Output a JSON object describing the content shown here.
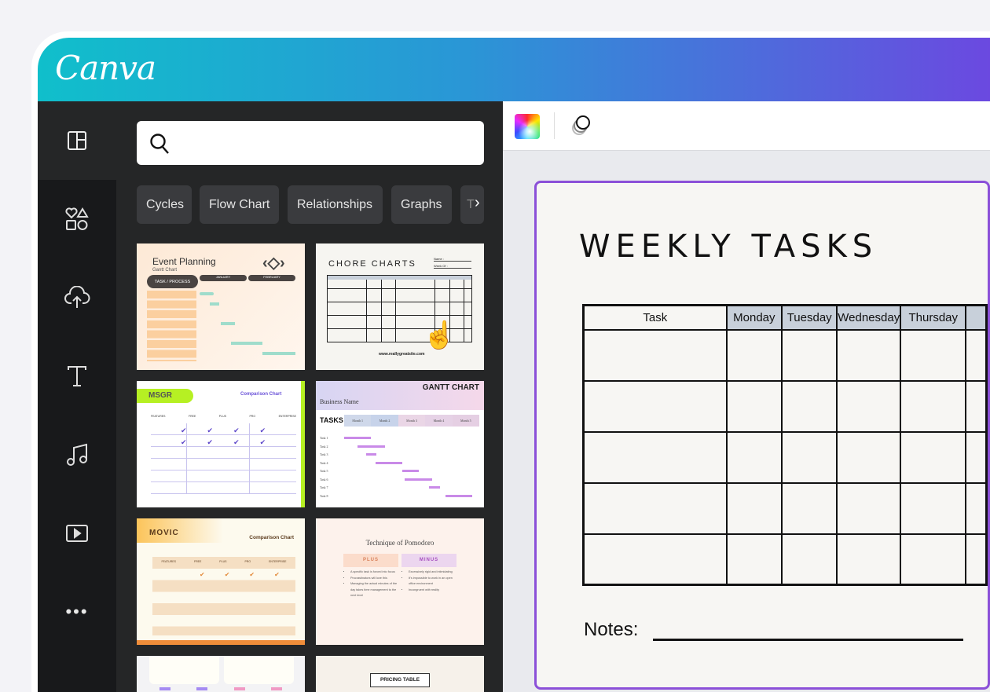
{
  "app": {
    "logo": "Canva"
  },
  "rail": {
    "items": [
      {
        "name": "design-icon",
        "selected": true
      },
      {
        "name": "elements-icon"
      },
      {
        "name": "uploads-icon"
      },
      {
        "name": "text-icon"
      },
      {
        "name": "audio-icon"
      },
      {
        "name": "video-icon"
      },
      {
        "name": "more-icon"
      }
    ]
  },
  "panel": {
    "search": {
      "placeholder": "",
      "value": ""
    },
    "chips": [
      "Cycles",
      "Flow Chart",
      "Relationships",
      "Graphs",
      "T"
    ],
    "templates": [
      {
        "title": "Event Planning",
        "subtitle": "Gantt Chart",
        "header": "TASK / PROCESS",
        "months": [
          "JANUARY",
          "FEBRUARY"
        ]
      },
      {
        "title": "CHORE CHARTS",
        "name_label": "Name :",
        "week_label": "Week Of :",
        "site": "www.reallygreatsite.com"
      },
      {
        "title": "MSGR",
        "subtitle": "Comparison Chart",
        "cols": [
          "FEATURES",
          "FREE",
          "PLUS",
          "PRO",
          "ENTERPRISE"
        ]
      },
      {
        "title": "GANTT CHART",
        "subtitle": "Business Name",
        "tasks_label": "TASKS",
        "months": [
          "Month 1",
          "Month 2",
          "Month 3",
          "Month 4",
          "Month 5"
        ],
        "tasks": [
          "Task 1",
          "Task 2",
          "Task 3",
          "Task 4",
          "Task 5",
          "Task 6",
          "Task 7",
          "Task 8"
        ]
      },
      {
        "title": "MOVIC",
        "subtitle": "Comparison Chart",
        "cols": [
          "FEATURES",
          "FREE",
          "PLUS",
          "PRO",
          "ENTERPRISE"
        ]
      },
      {
        "title": "Technique of Pomodoro",
        "plus": "PLUS",
        "minus": "MINUS",
        "plus_items": [
          "A specific task is forced into focus",
          "Procrastinators will love this",
          "Managing the actual minutes of the day takes time management to the next level"
        ],
        "minus_items": [
          "Excessively rigid and intimidating",
          "It's impossible to work in an open office environment",
          "Incongruent with reality"
        ]
      },
      {
        "title": ""
      },
      {
        "title": "PRICING TABLE"
      }
    ]
  },
  "toolbar": {
    "items": [
      "color-picker-icon",
      "transparency-icon"
    ]
  },
  "document": {
    "title": "WEEKLY TASKS",
    "columns": [
      "Task",
      "Monday",
      "Tuesday",
      "Wednesday",
      "Thursday"
    ],
    "rows": 5,
    "notes_label": "Notes:",
    "border_color": "#8b50d8",
    "header_fill": "#c8d0da"
  },
  "colors": {
    "gradient_start": "#10bfcb",
    "gradient_end": "#6b49e0"
  }
}
